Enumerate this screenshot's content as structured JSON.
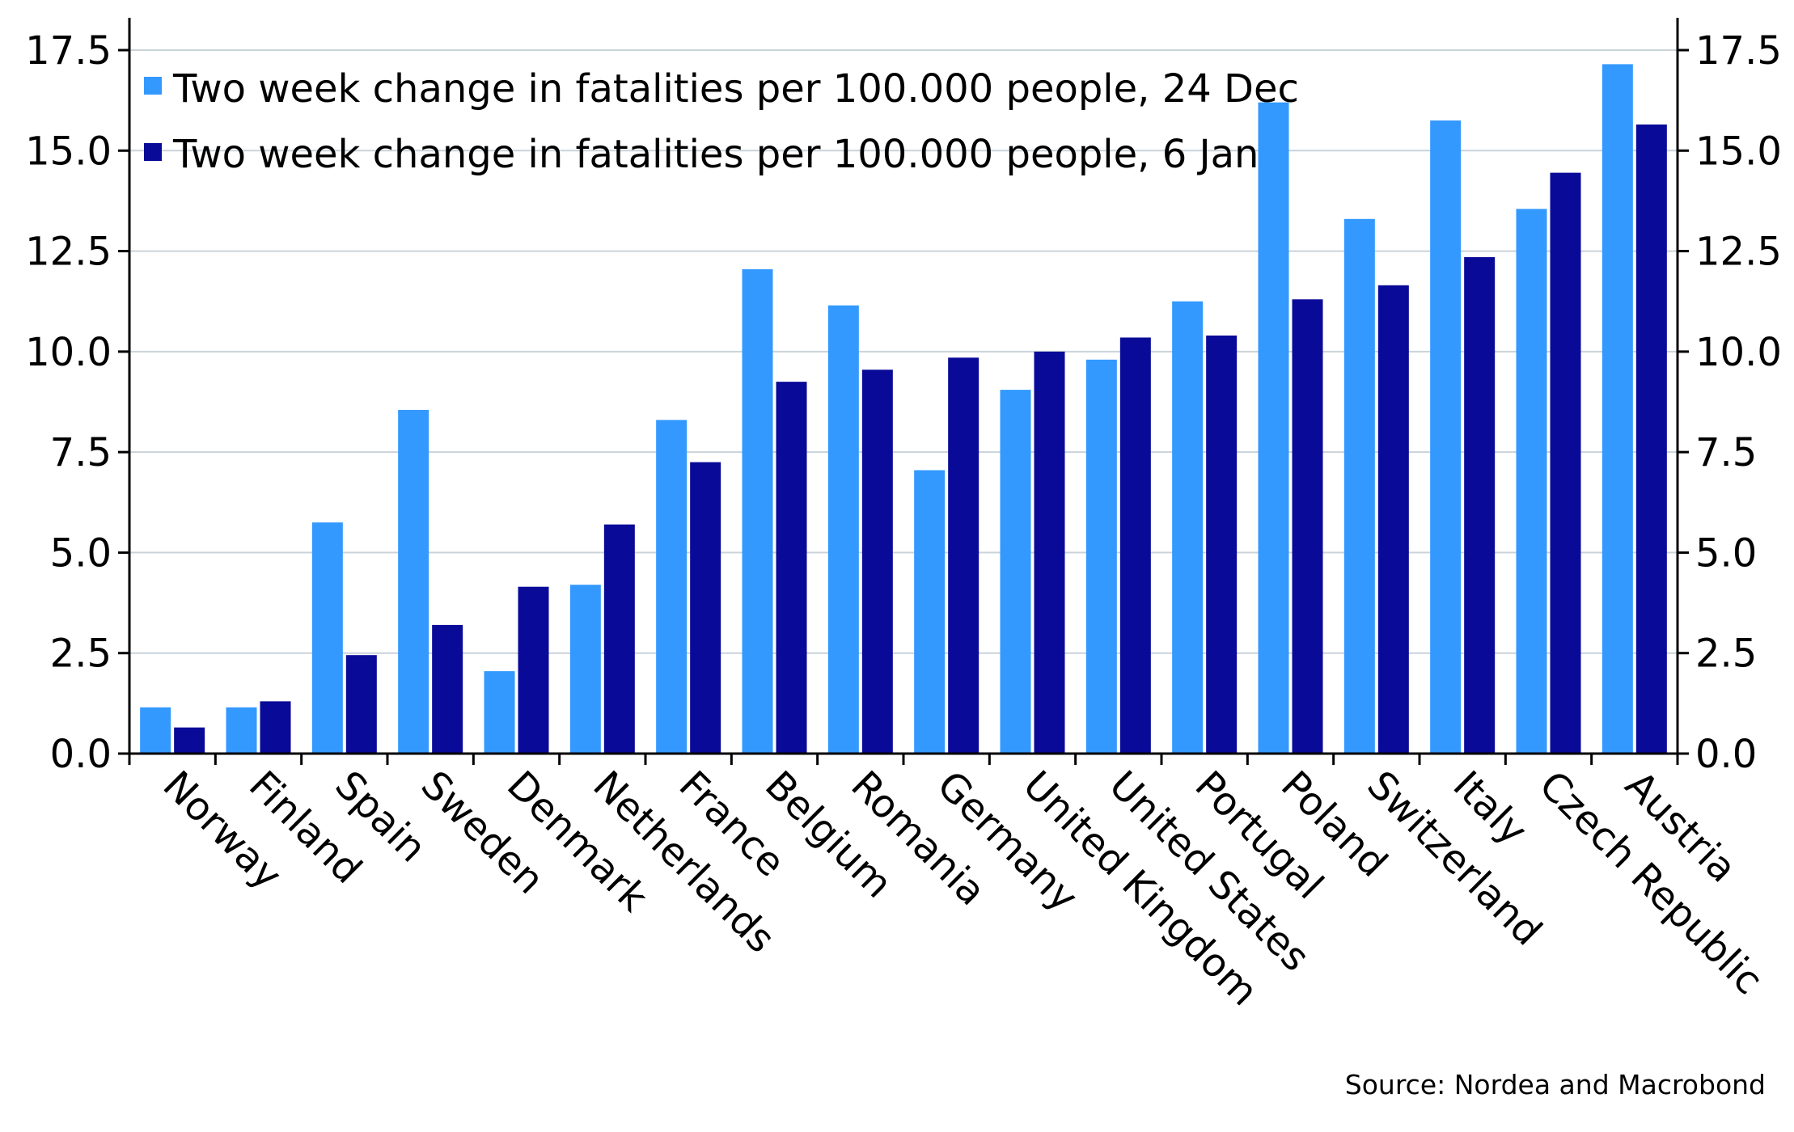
{
  "chart_data": {
    "type": "bar",
    "categories": [
      "Norway",
      "Finland",
      "Spain",
      "Sweden",
      "Denmark",
      "Netherlands",
      "France",
      "Belgium",
      "Romania",
      "Germany",
      "United Kingdom",
      "United States",
      "Portugal",
      "Poland",
      "Switzerland",
      "Italy",
      "Czech Republic",
      "Austria"
    ],
    "series": [
      {
        "name": "Two week change in fatalities per 100.000 people, 24 Dec",
        "color": "#3399FF",
        "values": [
          1.15,
          1.15,
          5.75,
          8.55,
          2.05,
          4.2,
          8.3,
          12.05,
          11.15,
          7.05,
          9.05,
          9.8,
          11.25,
          16.2,
          13.3,
          15.75,
          13.55,
          17.15
        ]
      },
      {
        "name": "Two week change in fatalities per 100.000 people, 6 Jan",
        "color": "#0A0A99",
        "values": [
          0.65,
          1.3,
          2.45,
          3.2,
          4.15,
          5.7,
          7.25,
          9.25,
          9.55,
          9.85,
          10.0,
          10.35,
          10.4,
          11.3,
          11.65,
          12.35,
          14.45,
          15.65
        ]
      }
    ],
    "ylim": [
      0,
      17.5
    ],
    "yticks": [
      "0.0",
      "2.5",
      "5.0",
      "7.5",
      "10.0",
      "12.5",
      "15.0",
      "17.5"
    ],
    "y_axis_left": true,
    "y_axis_right": true,
    "grid": true,
    "legend_position": "top-left",
    "source": "Source: Nordea and Macrobond"
  }
}
